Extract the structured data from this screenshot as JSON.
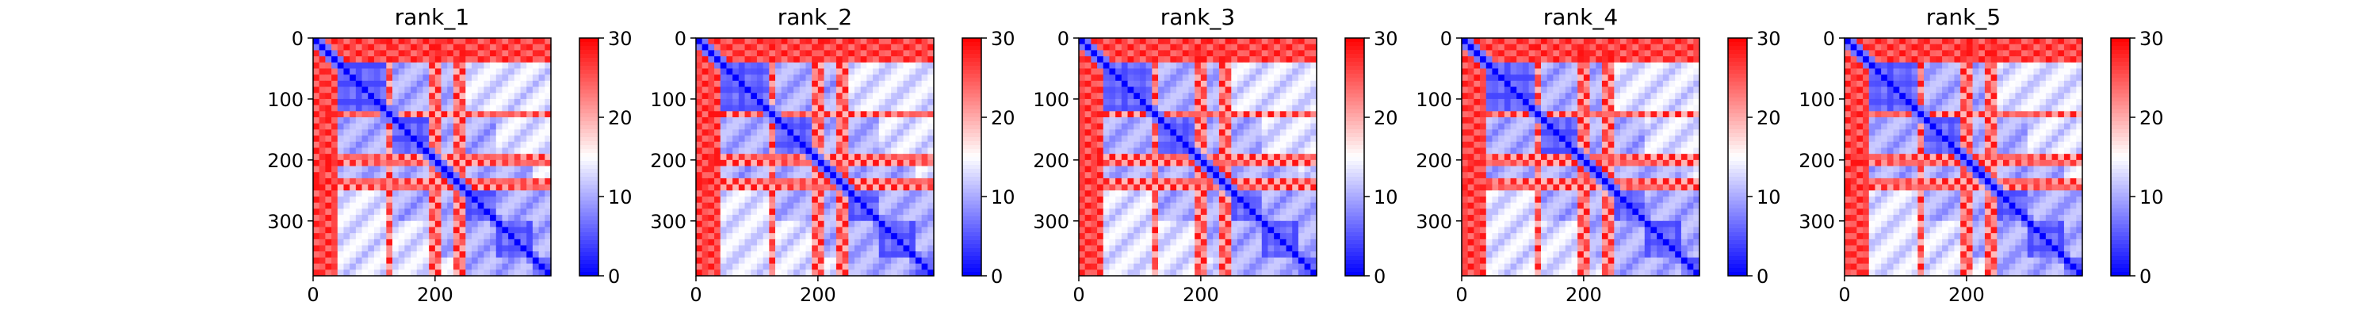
{
  "chart_data": [
    {
      "type": "heatmap",
      "title": "rank_1",
      "x_ticks": [
        0,
        200
      ],
      "y_ticks": [
        0,
        100,
        200,
        300
      ],
      "xlim": [
        0,
        390
      ],
      "ylim": [
        390,
        0
      ],
      "colorbar": {
        "min": 0,
        "max": 30,
        "ticks": [
          0,
          10,
          20,
          30
        ],
        "cmap": [
          "#0000ff",
          "#ffffff",
          "#ff0000"
        ]
      },
      "domain_bands": [
        [
          0,
          40
        ],
        [
          40,
          125
        ],
        [
          125,
          200
        ],
        [
          200,
          245
        ],
        [
          245,
          300
        ],
        [
          300,
          360
        ],
        [
          360,
          390
        ]
      ],
      "strong_rows": [
        125,
        200,
        240
      ],
      "grid": false
    },
    {
      "type": "heatmap",
      "title": "rank_2",
      "x_ticks": [
        0,
        200
      ],
      "y_ticks": [
        0,
        100,
        200,
        300
      ],
      "xlim": [
        0,
        390
      ],
      "ylim": [
        390,
        0
      ],
      "colorbar": {
        "min": 0,
        "max": 30,
        "ticks": [
          0,
          10,
          20,
          30
        ],
        "cmap": [
          "#0000ff",
          "#ffffff",
          "#ff0000"
        ]
      },
      "domain_bands": [
        [
          0,
          40
        ],
        [
          40,
          125
        ],
        [
          125,
          200
        ],
        [
          200,
          245
        ],
        [
          245,
          300
        ],
        [
          300,
          360
        ],
        [
          360,
          390
        ]
      ],
      "strong_rows": [
        125,
        200,
        240
      ],
      "grid": false
    },
    {
      "type": "heatmap",
      "title": "rank_3",
      "x_ticks": [
        0,
        200
      ],
      "y_ticks": [
        0,
        100,
        200,
        300
      ],
      "xlim": [
        0,
        390
      ],
      "ylim": [
        390,
        0
      ],
      "colorbar": {
        "min": 0,
        "max": 30,
        "ticks": [
          0,
          10,
          20,
          30
        ],
        "cmap": [
          "#0000ff",
          "#ffffff",
          "#ff0000"
        ]
      },
      "domain_bands": [
        [
          0,
          40
        ],
        [
          40,
          125
        ],
        [
          125,
          200
        ],
        [
          200,
          245
        ],
        [
          245,
          300
        ],
        [
          300,
          360
        ],
        [
          360,
          390
        ]
      ],
      "strong_rows": [
        125,
        200,
        240
      ],
      "grid": false
    },
    {
      "type": "heatmap",
      "title": "rank_4",
      "x_ticks": [
        0,
        200
      ],
      "y_ticks": [
        0,
        100,
        200,
        300
      ],
      "xlim": [
        0,
        390
      ],
      "ylim": [
        390,
        0
      ],
      "colorbar": {
        "min": 0,
        "max": 30,
        "ticks": [
          0,
          10,
          20,
          30
        ],
        "cmap": [
          "#0000ff",
          "#ffffff",
          "#ff0000"
        ]
      },
      "domain_bands": [
        [
          0,
          40
        ],
        [
          40,
          125
        ],
        [
          125,
          200
        ],
        [
          200,
          245
        ],
        [
          245,
          300
        ],
        [
          300,
          360
        ],
        [
          360,
          390
        ]
      ],
      "strong_rows": [
        125,
        200,
        240
      ],
      "grid": false
    },
    {
      "type": "heatmap",
      "title": "rank_5",
      "x_ticks": [
        0,
        200
      ],
      "y_ticks": [
        0,
        100,
        200,
        300
      ],
      "xlim": [
        0,
        390
      ],
      "ylim": [
        390,
        0
      ],
      "colorbar": {
        "min": 0,
        "max": 30,
        "ticks": [
          0,
          10,
          20,
          30
        ],
        "cmap": [
          "#0000ff",
          "#ffffff",
          "#ff0000"
        ]
      },
      "domain_bands": [
        [
          0,
          40
        ],
        [
          40,
          125
        ],
        [
          125,
          200
        ],
        [
          200,
          245
        ],
        [
          245,
          300
        ],
        [
          300,
          360
        ],
        [
          360,
          390
        ]
      ],
      "strong_rows": [
        125,
        200,
        240
      ],
      "grid": false
    }
  ]
}
